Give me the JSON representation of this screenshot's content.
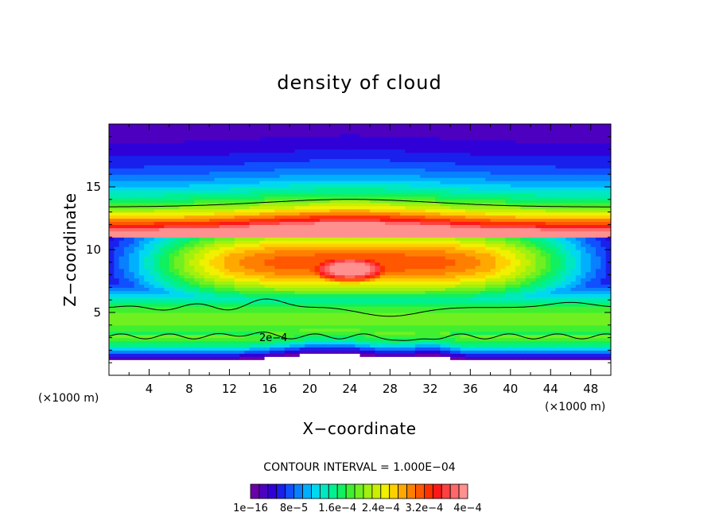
{
  "chart_data": {
    "type": "heatmap",
    "title": "density of cloud",
    "xlabel": "X−coordinate",
    "ylabel": "Z−coordinate",
    "x_unit": "(×1000 m)",
    "y_unit": "(×1000 m)",
    "xlim": [
      0,
      50
    ],
    "ylim": [
      0,
      20
    ],
    "x_ticks": [
      4,
      8,
      12,
      16,
      20,
      24,
      28,
      32,
      36,
      40,
      44,
      48
    ],
    "y_ticks": [
      5,
      10,
      15
    ],
    "contour_interval_text": "CONTOUR INTERVAL = 1.000E−04",
    "contour_line_label": "2e−4",
    "colorbar": {
      "tick_labels": [
        "1e−16",
        "8e−5",
        "1.6e−4",
        "2.4e−4",
        "3.2e−4",
        "4e−4"
      ],
      "colors": [
        "#6a00a8",
        "#4d00c0",
        "#3000d8",
        "#1a20ec",
        "#1050ff",
        "#0880ff",
        "#00b0ff",
        "#00d8f0",
        "#00e8c0",
        "#00f090",
        "#10f060",
        "#40f030",
        "#70f020",
        "#a0f010",
        "#c8f000",
        "#f0f000",
        "#ffd000",
        "#ffa800",
        "#ff8000",
        "#ff5800",
        "#ff3000",
        "#ff1818",
        "#ff4040",
        "#ff6868",
        "#ff9090"
      ]
    },
    "levels_note": "",
    "grid": false
  }
}
